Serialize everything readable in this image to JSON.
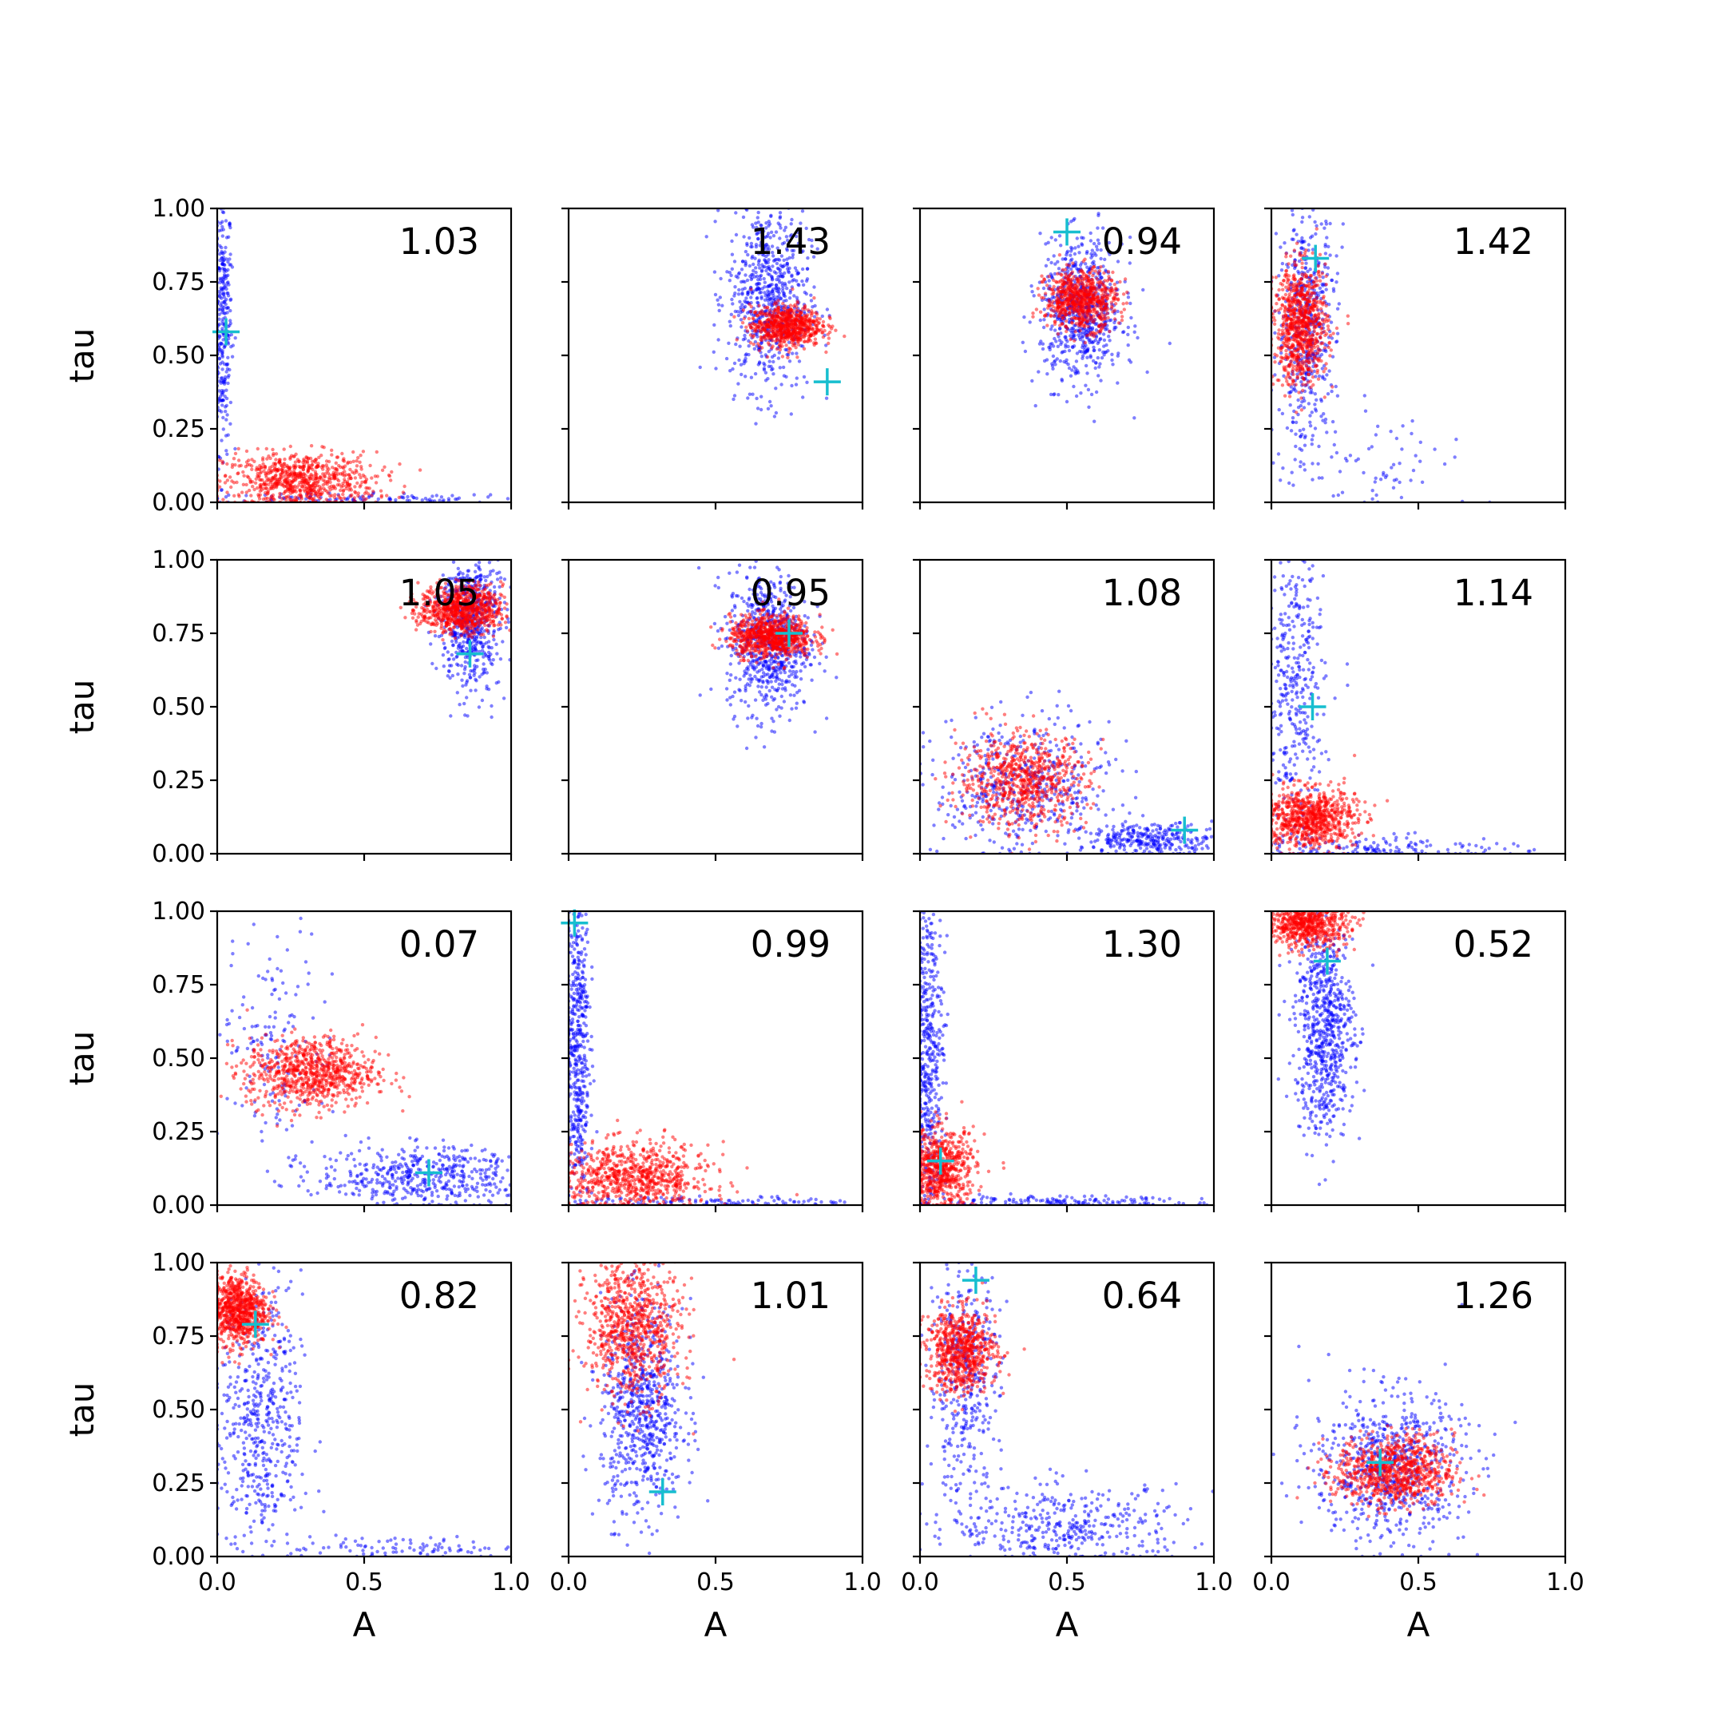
{
  "chart_data": {
    "type": "scatter",
    "layout": {
      "rows": 4,
      "cols": 4
    },
    "xlabel": "A",
    "ylabel": "tau",
    "xlim": [
      0,
      1
    ],
    "ylim": [
      0,
      1
    ],
    "xticks": [
      "0.0",
      "0.5",
      "1.0"
    ],
    "yticks": [
      "0.00",
      "0.25",
      "0.50",
      "0.75",
      "1.00"
    ],
    "colors": {
      "blue_series": "#0000ff",
      "red_series": "#ff0000",
      "marker": "#17becf"
    },
    "panels": [
      {
        "label": "1.03",
        "marker": [
          0.03,
          0.58
        ],
        "blue": [
          {
            "cx": 0.02,
            "cy": 0.62,
            "sx": 0.015,
            "sy": 0.22,
            "n": 300
          },
          {
            "cx": 0.45,
            "cy": 0.01,
            "sx": 0.3,
            "sy": 0.01,
            "n": 120
          }
        ],
        "red": [
          {
            "cx": 0.28,
            "cy": 0.07,
            "sx": 0.13,
            "sy": 0.05,
            "n": 800
          }
        ]
      },
      {
        "label": "1.43",
        "marker": [
          0.88,
          0.41
        ],
        "blue": [
          {
            "cx": 0.68,
            "cy": 0.7,
            "sx": 0.07,
            "sy": 0.16,
            "n": 700
          }
        ],
        "red": [
          {
            "cx": 0.74,
            "cy": 0.6,
            "sx": 0.06,
            "sy": 0.035,
            "n": 700
          }
        ]
      },
      {
        "label": "0.94",
        "marker": [
          0.5,
          0.92
        ],
        "blue": [
          {
            "cx": 0.55,
            "cy": 0.65,
            "sx": 0.07,
            "sy": 0.12,
            "n": 700
          }
        ],
        "red": [
          {
            "cx": 0.55,
            "cy": 0.69,
            "sx": 0.06,
            "sy": 0.05,
            "n": 700
          }
        ]
      },
      {
        "label": "1.42",
        "marker": [
          0.15,
          0.83
        ],
        "blue": [
          {
            "cx": 0.12,
            "cy": 0.6,
            "sx": 0.05,
            "sy": 0.2,
            "n": 500
          },
          {
            "cx": 0.35,
            "cy": 0.1,
            "sx": 0.18,
            "sy": 0.1,
            "n": 80
          }
        ],
        "red": [
          {
            "cx": 0.1,
            "cy": 0.6,
            "sx": 0.045,
            "sy": 0.1,
            "n": 800
          }
        ]
      },
      {
        "label": "1.05",
        "marker": [
          0.86,
          0.68
        ],
        "blue": [
          {
            "cx": 0.86,
            "cy": 0.8,
            "sx": 0.05,
            "sy": 0.12,
            "n": 600
          }
        ],
        "red": [
          {
            "cx": 0.83,
            "cy": 0.83,
            "sx": 0.07,
            "sy": 0.04,
            "n": 800
          }
        ]
      },
      {
        "label": "0.95",
        "marker": [
          0.75,
          0.75
        ],
        "blue": [
          {
            "cx": 0.68,
            "cy": 0.72,
            "sx": 0.07,
            "sy": 0.12,
            "n": 700
          }
        ],
        "red": [
          {
            "cx": 0.69,
            "cy": 0.74,
            "sx": 0.07,
            "sy": 0.035,
            "n": 800
          }
        ]
      },
      {
        "label": "1.08",
        "marker": [
          0.9,
          0.08
        ],
        "blue": [
          {
            "cx": 0.35,
            "cy": 0.22,
            "sx": 0.15,
            "sy": 0.12,
            "n": 500
          },
          {
            "cx": 0.8,
            "cy": 0.05,
            "sx": 0.12,
            "sy": 0.025,
            "n": 300
          }
        ],
        "red": [
          {
            "cx": 0.35,
            "cy": 0.25,
            "sx": 0.11,
            "sy": 0.08,
            "n": 700
          }
        ]
      },
      {
        "label": "1.14",
        "marker": [
          0.14,
          0.5
        ],
        "blue": [
          {
            "cx": 0.08,
            "cy": 0.55,
            "sx": 0.05,
            "sy": 0.28,
            "n": 400
          },
          {
            "cx": 0.4,
            "cy": 0.02,
            "sx": 0.22,
            "sy": 0.02,
            "n": 150
          }
        ],
        "red": [
          {
            "cx": 0.13,
            "cy": 0.12,
            "sx": 0.08,
            "sy": 0.05,
            "n": 800
          }
        ]
      },
      {
        "label": "0.07",
        "marker": [
          0.72,
          0.11
        ],
        "blue": [
          {
            "cx": 0.7,
            "cy": 0.1,
            "sx": 0.18,
            "sy": 0.05,
            "n": 500
          },
          {
            "cx": 0.2,
            "cy": 0.55,
            "sx": 0.1,
            "sy": 0.18,
            "n": 150
          }
        ],
        "red": [
          {
            "cx": 0.32,
            "cy": 0.45,
            "sx": 0.11,
            "sy": 0.06,
            "n": 800
          }
        ]
      },
      {
        "label": "0.99",
        "marker": [
          0.02,
          0.96
        ],
        "blue": [
          {
            "cx": 0.03,
            "cy": 0.55,
            "sx": 0.02,
            "sy": 0.3,
            "n": 500
          },
          {
            "cx": 0.5,
            "cy": 0.01,
            "sx": 0.25,
            "sy": 0.01,
            "n": 120
          }
        ],
        "red": [
          {
            "cx": 0.22,
            "cy": 0.09,
            "sx": 0.13,
            "sy": 0.06,
            "n": 800
          }
        ]
      },
      {
        "label": "1.30",
        "marker": [
          0.07,
          0.15
        ],
        "blue": [
          {
            "cx": 0.03,
            "cy": 0.5,
            "sx": 0.025,
            "sy": 0.3,
            "n": 500
          },
          {
            "cx": 0.45,
            "cy": 0.01,
            "sx": 0.25,
            "sy": 0.01,
            "n": 150
          }
        ],
        "red": [
          {
            "cx": 0.07,
            "cy": 0.12,
            "sx": 0.06,
            "sy": 0.07,
            "n": 700
          }
        ]
      },
      {
        "label": "0.52",
        "marker": [
          0.19,
          0.83
        ],
        "blue": [
          {
            "cx": 0.18,
            "cy": 0.6,
            "sx": 0.05,
            "sy": 0.18,
            "n": 700
          }
        ],
        "red": [
          {
            "cx": 0.12,
            "cy": 0.96,
            "sx": 0.07,
            "sy": 0.04,
            "n": 700
          }
        ]
      },
      {
        "label": "0.82",
        "marker": [
          0.13,
          0.79
        ],
        "blue": [
          {
            "cx": 0.15,
            "cy": 0.45,
            "sx": 0.07,
            "sy": 0.22,
            "n": 500
          },
          {
            "cx": 0.6,
            "cy": 0.03,
            "sx": 0.22,
            "sy": 0.02,
            "n": 100
          }
        ],
        "red": [
          {
            "cx": 0.07,
            "cy": 0.84,
            "sx": 0.05,
            "sy": 0.06,
            "n": 800
          }
        ]
      },
      {
        "label": "1.01",
        "marker": [
          0.32,
          0.22
        ],
        "blue": [
          {
            "cx": 0.25,
            "cy": 0.5,
            "sx": 0.07,
            "sy": 0.18,
            "n": 700
          }
        ],
        "red": [
          {
            "cx": 0.22,
            "cy": 0.78,
            "sx": 0.08,
            "sy": 0.12,
            "n": 800
          }
        ]
      },
      {
        "label": "0.64",
        "marker": [
          0.19,
          0.94
        ],
        "blue": [
          {
            "cx": 0.15,
            "cy": 0.6,
            "sx": 0.06,
            "sy": 0.2,
            "n": 400
          },
          {
            "cx": 0.5,
            "cy": 0.1,
            "sx": 0.2,
            "sy": 0.07,
            "n": 400
          }
        ],
        "red": [
          {
            "cx": 0.14,
            "cy": 0.7,
            "sx": 0.06,
            "sy": 0.07,
            "n": 700
          }
        ]
      },
      {
        "label": "1.26",
        "marker": [
          0.37,
          0.32
        ],
        "blue": [
          {
            "cx": 0.4,
            "cy": 0.3,
            "sx": 0.13,
            "sy": 0.13,
            "n": 700
          }
        ],
        "red": [
          {
            "cx": 0.42,
            "cy": 0.29,
            "sx": 0.1,
            "sy": 0.06,
            "n": 800
          }
        ]
      }
    ]
  }
}
